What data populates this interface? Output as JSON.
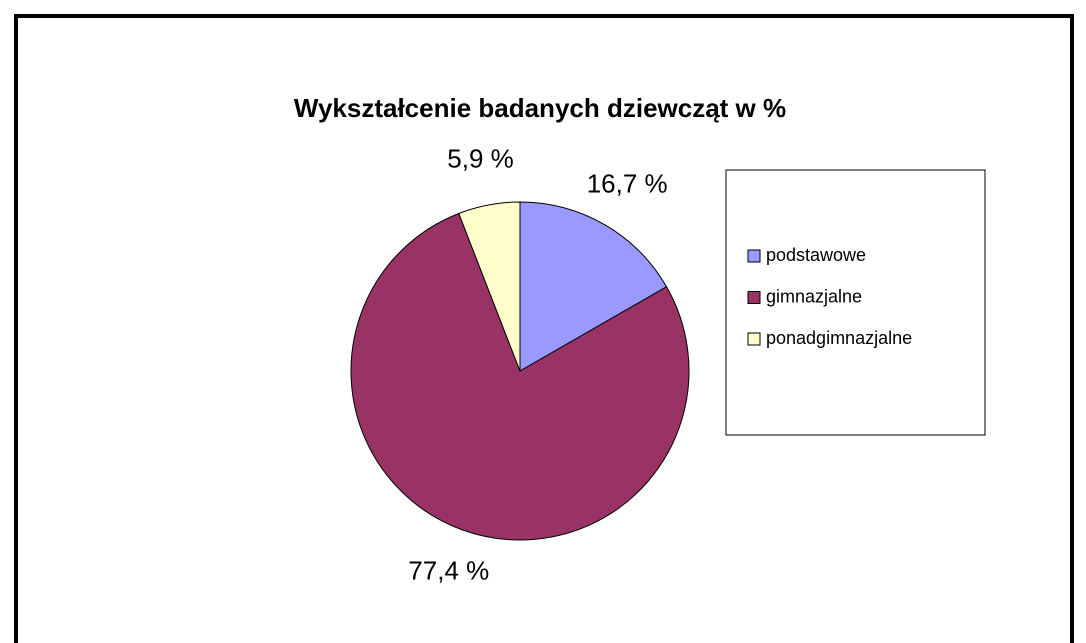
{
  "chart_data": {
    "type": "pie",
    "title": "Wykształcenie badanych dziewcząt w %",
    "categories": [
      "podstawowe",
      "gimnazjalne",
      "ponadgimnazjalne"
    ],
    "values": [
      16.7,
      77.4,
      5.9
    ],
    "value_labels": [
      "16,7 %",
      "77,4 %",
      "5,9 %"
    ],
    "colors": [
      "#9999ff",
      "#993366",
      "#ffffcc"
    ],
    "legend": "right"
  }
}
